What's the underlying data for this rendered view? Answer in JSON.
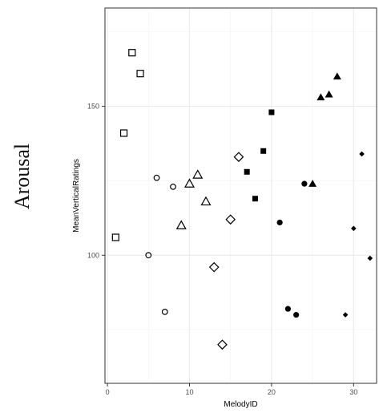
{
  "figure": {
    "side_title": "Arousal"
  },
  "chart_data": {
    "type": "scatter",
    "xlabel": "MelodyID",
    "ylabel": "MeanVerticalRatings",
    "xlim": [
      -0.3,
      32.8
    ],
    "ylim": [
      57,
      183
    ],
    "x_ticks": [
      0,
      10,
      20,
      30
    ],
    "x_tick_labels": [
      "0",
      "10",
      "20",
      "30"
    ],
    "y_ticks": [
      100,
      150
    ],
    "y_tick_labels": [
      "100",
      "150"
    ],
    "minor_x": [
      5,
      15,
      25
    ],
    "minor_y": [
      75,
      125,
      175
    ],
    "grid": true,
    "legend": "none",
    "colors": {
      "panel_border": "#333333",
      "grid_major": "#ebebeb",
      "grid_minor": "#f5f5f5",
      "marker": "#000000",
      "tick_label": "#4d4d4d"
    },
    "series": [
      {
        "shape": "open-square",
        "points": [
          [
            1,
            106
          ],
          [
            2,
            141
          ],
          [
            3,
            168
          ],
          [
            4,
            161
          ]
        ]
      },
      {
        "shape": "open-circle",
        "points": [
          [
            5,
            100
          ],
          [
            6,
            126
          ],
          [
            7,
            81
          ],
          [
            8,
            123
          ]
        ]
      },
      {
        "shape": "open-triangle",
        "points": [
          [
            9,
            110
          ],
          [
            10,
            124
          ],
          [
            11,
            127
          ],
          [
            12,
            118
          ]
        ]
      },
      {
        "shape": "open-diamond",
        "points": [
          [
            13,
            96
          ],
          [
            14,
            70
          ],
          [
            15,
            112
          ],
          [
            16,
            133
          ]
        ]
      },
      {
        "shape": "filled-square",
        "points": [
          [
            17,
            128
          ],
          [
            18,
            119
          ],
          [
            19,
            135
          ],
          [
            20,
            148
          ]
        ]
      },
      {
        "shape": "filled-circle",
        "points": [
          [
            21,
            111
          ],
          [
            22,
            82
          ],
          [
            23,
            80
          ],
          [
            24,
            124
          ]
        ]
      },
      {
        "shape": "filled-triangle",
        "points": [
          [
            25,
            124
          ],
          [
            26,
            153
          ],
          [
            27,
            154
          ],
          [
            28,
            160
          ]
        ]
      },
      {
        "shape": "filled-diamond",
        "points": [
          [
            29,
            80
          ],
          [
            30,
            109
          ],
          [
            31,
            134
          ],
          [
            32,
            99
          ]
        ]
      }
    ]
  }
}
